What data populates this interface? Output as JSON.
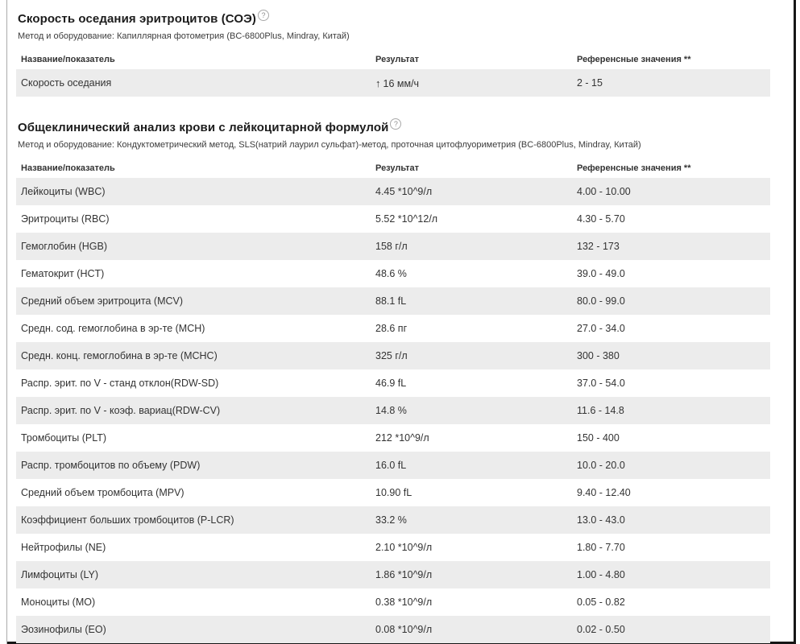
{
  "columns": {
    "name": "Название/показатель",
    "result": "Результат",
    "reference": "Референсные значения **"
  },
  "colors": {
    "row_stripe": "#ececec",
    "frame_border": "#161616",
    "text": "#333333"
  },
  "sed_section": {
    "title": "Скорость оседания эритроцитов (СОЭ)",
    "help_icon": "?",
    "method": "Метод и оборудование: Капиллярная фотометрия (BC-6800Plus, Mindray, Китай)",
    "rows": [
      {
        "name": "Скорость оседания",
        "flag": "↑",
        "result": "16 мм/ч",
        "reference": "2 - 15"
      }
    ]
  },
  "cbc_section": {
    "title": "Общеклинический анализ крови с лейкоцитарной формулой",
    "help_icon": "?",
    "method": "Метод и оборудование: Кондуктометрический метод, SLS(натрий лаурил сульфат)-метод, проточная цитофлуориметрия (BC-6800Plus, Mindray, Китай)",
    "rows": [
      {
        "name": "Лейкоциты (WBC)",
        "result": "4.45 *10^9/л",
        "reference": "4.00 - 10.00"
      },
      {
        "name": "Эритроциты (RBC)",
        "result": "5.52 *10^12/л",
        "reference": "4.30 - 5.70"
      },
      {
        "name": "Гемоглобин (HGB)",
        "result": "158 г/л",
        "reference": "132 - 173"
      },
      {
        "name": "Гематокрит (HCT)",
        "result": "48.6 %",
        "reference": "39.0 - 49.0"
      },
      {
        "name": "Средний объем эритроцита (MCV)",
        "result": "88.1 fL",
        "reference": "80.0 - 99.0"
      },
      {
        "name": "Средн. сод. гемоглобина в эр-те (MCH)",
        "result": "28.6 пг",
        "reference": "27.0 - 34.0"
      },
      {
        "name": "Средн. конц. гемоглобина в эр-те (MCHC)",
        "result": "325 г/л",
        "reference": "300 - 380"
      },
      {
        "name": "Распр. эрит. по V - станд отклон(RDW-SD)",
        "result": "46.9 fL",
        "reference": "37.0 - 54.0"
      },
      {
        "name": "Распр. эрит. по V - коэф. вариац(RDW-CV)",
        "result": "14.8 %",
        "reference": "11.6 - 14.8"
      },
      {
        "name": "Тромбоциты (PLT)",
        "result": "212 *10^9/л",
        "reference": "150 - 400"
      },
      {
        "name": "Распр. тромбоцитов по объему (PDW)",
        "result": "16.0 fL",
        "reference": "10.0 - 20.0"
      },
      {
        "name": "Средний объем тромбоцита (MPV)",
        "result": "10.90 fL",
        "reference": "9.40 - 12.40"
      },
      {
        "name": "Коэффициент больших тромбоцитов (P-LCR)",
        "result": "33.2 %",
        "reference": "13.0 - 43.0"
      },
      {
        "name": "Нейтрофилы (NE)",
        "result": "2.10 *10^9/л",
        "reference": "1.80 - 7.70"
      },
      {
        "name": "Лимфоциты (LY)",
        "result": "1.86 *10^9/л",
        "reference": "1.00 - 4.80"
      },
      {
        "name": "Моноциты (MO)",
        "result": "0.38 *10^9/л",
        "reference": "0.05 - 0.82"
      },
      {
        "name": "Эозинофилы (EO)",
        "result": "0.08 *10^9/л",
        "reference": "0.02 - 0.50"
      }
    ]
  }
}
